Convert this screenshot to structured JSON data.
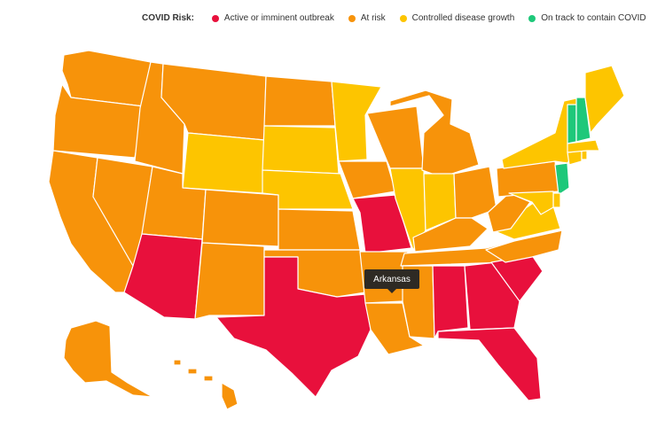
{
  "legend": {
    "title": "COVID Risk:",
    "items": [
      {
        "label": "Active or imminent outbreak",
        "color": "#e8103c"
      },
      {
        "label": "At risk",
        "color": "#f7930a"
      },
      {
        "label": "Controlled disease growth",
        "color": "#fdc500"
      },
      {
        "label": "On track to contain COVID",
        "color": "#1ec87a"
      }
    ]
  },
  "colors": {
    "red": "#e8103c",
    "orange": "#f7930a",
    "yellow": "#fdc500",
    "green": "#1ec87a"
  },
  "tooltip": {
    "text": "Arkansas"
  },
  "state_risk": {
    "WA": "orange",
    "OR": "orange",
    "CA": "orange",
    "NV": "orange",
    "ID": "orange",
    "MT": "orange",
    "WY": "yellow",
    "UT": "orange",
    "AZ": "red",
    "CO": "orange",
    "NM": "orange",
    "ND": "orange",
    "SD": "yellow",
    "NE": "yellow",
    "KS": "orange",
    "OK": "orange",
    "TX": "red",
    "MN": "yellow",
    "IA": "orange",
    "MO": "red",
    "AR": "orange",
    "LA": "orange",
    "WI": "orange",
    "IL": "yellow",
    "MI": "orange",
    "IN": "yellow",
    "OH": "orange",
    "KY": "orange",
    "TN": "orange",
    "MS": "orange",
    "AL": "red",
    "GA": "red",
    "FL": "red",
    "SC": "red",
    "NC": "orange",
    "VA": "yellow",
    "WV": "orange",
    "PA": "orange",
    "NY": "yellow",
    "NJ": "green",
    "DE": "yellow",
    "MD": "yellow",
    "CT": "yellow",
    "RI": "yellow",
    "MA": "yellow",
    "VT": "green",
    "NH": "green",
    "ME": "yellow",
    "AK": "orange",
    "HI": "orange"
  }
}
